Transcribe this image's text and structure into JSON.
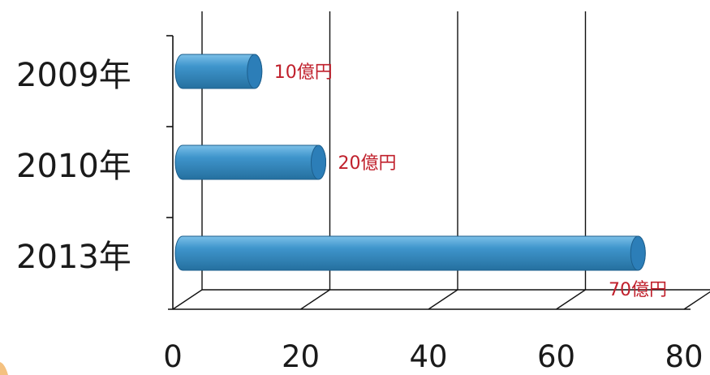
{
  "colors": {
    "bar_fill": "#3a8ec6",
    "bar_cap": "#2c7eb8",
    "bar_top": "#6fb3de",
    "bar_edge": "#1d5f8d",
    "data_label": "#c0202c",
    "accent_corner": "#f0a64a"
  },
  "chart_data": {
    "type": "bar",
    "orientation": "horizontal",
    "style": "3d-cylinder",
    "categories": [
      "2009年",
      "2010年",
      "2013年"
    ],
    "values": [
      10,
      20,
      70
    ],
    "data_labels": [
      "10億円",
      "20億円",
      "70億円"
    ],
    "x_ticks": [
      "0",
      "20",
      "40",
      "60",
      "80"
    ],
    "xlim": [
      0,
      80
    ],
    "grid": true,
    "legend": "none",
    "title": "",
    "xlabel": "",
    "ylabel": ""
  }
}
